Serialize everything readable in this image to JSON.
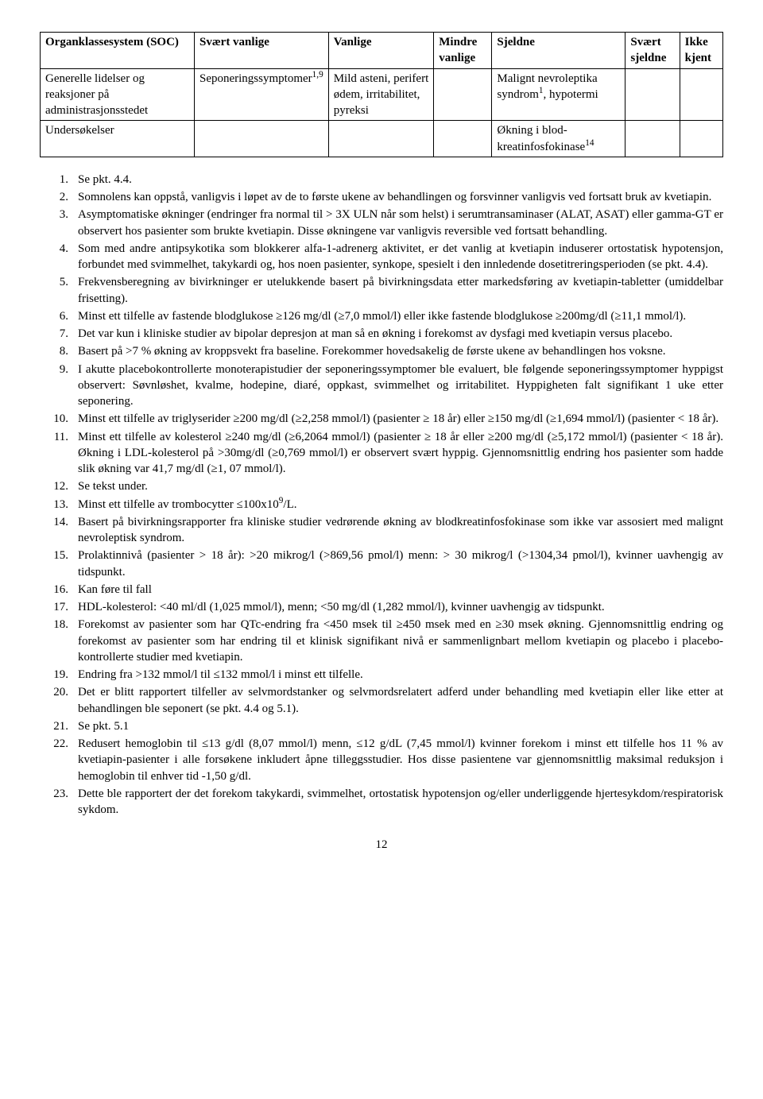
{
  "table": {
    "headers": [
      "Organklassesystem (SOC)",
      "Svært vanlige",
      "Vanlige",
      "Mindre vanlige",
      "Sjeldne",
      "Svært sjeldne",
      "Ikke kjent"
    ],
    "rows": [
      {
        "c0": "Generelle lidelser og reaksjoner på administrasjonsstedet",
        "c1": "Seponeringssymptomer<sup>1,9</sup>",
        "c2": "Mild asteni, perifert ødem, irritabilitet, pyreksi",
        "c3": "",
        "c4": "Malignt nevroleptika syndrom<sup>1</sup>, hypotermi",
        "c5": "",
        "c6": ""
      },
      {
        "c0": "Undersøkelser",
        "c1": "",
        "c2": "",
        "c3": "",
        "c4": "Økning i blod-kreatinfosfokinase<sup>14</sup>",
        "c5": "",
        "c6": ""
      }
    ]
  },
  "notes": [
    "Se pkt. 4.4.",
    "Somnolens kan oppstå, vanligvis i løpet av de to første ukene av behandlingen og forsvinner vanligvis ved fortsatt bruk av kvetiapin.",
    "Asymptomatiske økninger (endringer fra normal til > 3X ULN når som helst) i serumtransaminaser (ALAT, ASAT) eller gamma-GT er observert hos pasienter som brukte kvetiapin. Disse økningene var vanligvis reversible ved fortsatt behandling.",
    "Som med andre antipsykotika som blokkerer alfa-1-adrenerg aktivitet, er det vanlig at kvetiapin induserer ortostatisk hypotensjon, forbundet med svimmelhet, takykardi og, hos noen pasienter, synkope, spesielt i den innledende dosetitreringsperioden (se pkt. 4.4).",
    "Frekvensberegning av bivirkninger er utelukkende basert på bivirkningsdata etter markedsføring av kvetiapin-tabletter (umiddelbar frisetting).",
    "Minst ett tilfelle av fastende blodglukose ≥126 mg/dl (≥7,0 mmol/l) eller ikke fastende blodglukose ≥200mg/dl (≥11,1 mmol/l).",
    "Det var kun i kliniske studier av bipolar depresjon at man så en økning i forekomst av dysfagi med kvetiapin versus placebo.",
    "Basert på >7 % økning av kroppsvekt fra baseline. Forekommer hovedsakelig de første ukene av behandlingen hos voksne.",
    "I akutte placebokontrollerte monoterapistudier der seponeringssymptomer ble evaluert, ble følgende seponeringssymptomer hyppigst observert: Søvnløshet, kvalme, hodepine, diaré, oppkast, svimmelhet og irritabilitet. Hyppigheten falt signifikant 1 uke etter seponering.",
    "Minst ett tilfelle av triglyserider ≥200 mg/dl (≥2,258 mmol/l) (pasienter ≥ 18 år) eller ≥150 mg/dl (≥1,694 mmol/l) (pasienter < 18 år).",
    "Minst ett tilfelle av kolesterol ≥240 mg/dl (≥6,2064 mmol/l) (pasienter ≥ 18 år eller ≥200 mg/dl (≥5,172 mmol/l) (pasienter < 18 år). Økning i LDL-kolesterol på >30mg/dl (≥0,769 mmol/l) er observert svært hyppig. Gjennomsnittlig endring hos pasienter som hadde slik økning var 41,7 mg/dl (≥1, 07 mmol/l).",
    "Se tekst under.",
    "Minst ett tilfelle av trombocytter ≤100x10<sup>9</sup>/L.",
    "Basert på bivirkningsrapporter fra kliniske studier vedrørende økning av blodkreatinfosfokinase som ikke var assosiert med malignt nevroleptisk syndrom.",
    "Prolaktinnivå (pasienter > 18 år): >20 mikrog/l (>869,56 pmol/l) menn: > 30 mikrog/l (>1304,34 pmol/l), kvinner uavhengig av tidspunkt.",
    "Kan føre til fall",
    "HDL-kolesterol: <40 ml/dl (1,025 mmol/l), menn; <50 mg/dl (1,282 mmol/l), kvinner uavhengig av tidspunkt.",
    "Forekomst av pasienter som har QTc-endring fra <450 msek til ≥450 msek med en ≥30 msek økning. Gjennomsnittlig endring og forekomst av pasienter som har endring til et klinisk signifikant nivå er sammenlignbart mellom kvetiapin og placebo i placebo-kontrollerte studier med kvetiapin.",
    "Endring fra >132 mmol/l til ≤132 mmol/l i minst ett tilfelle.",
    "Det er blitt rapportert tilfeller av selvmordstanker og selvmordsrelatert adferd under behandling med kvetiapin eller like etter at behandlingen ble seponert (se pkt. 4.4 og 5.1).",
    "Se pkt. 5.1",
    "Redusert hemoglobin til ≤13 g/dl (8,07 mmol/l) menn, ≤12 g/dL (7,45 mmol/l) kvinner forekom i minst ett tilfelle hos 11 % av kvetiapin-pasienter i alle forsøkene inkludert åpne tilleggsstudier. Hos disse pasientene var gjennomsnittlig maksimal reduksjon i hemoglobin til enhver tid -1,50 g/dl.",
    "Dette ble rapportert der det forekom takykardi, svimmelhet, ortostatisk hypotensjon og/eller underliggende hjertesykdom/respiratorisk sykdom."
  ],
  "pageNumber": "12"
}
